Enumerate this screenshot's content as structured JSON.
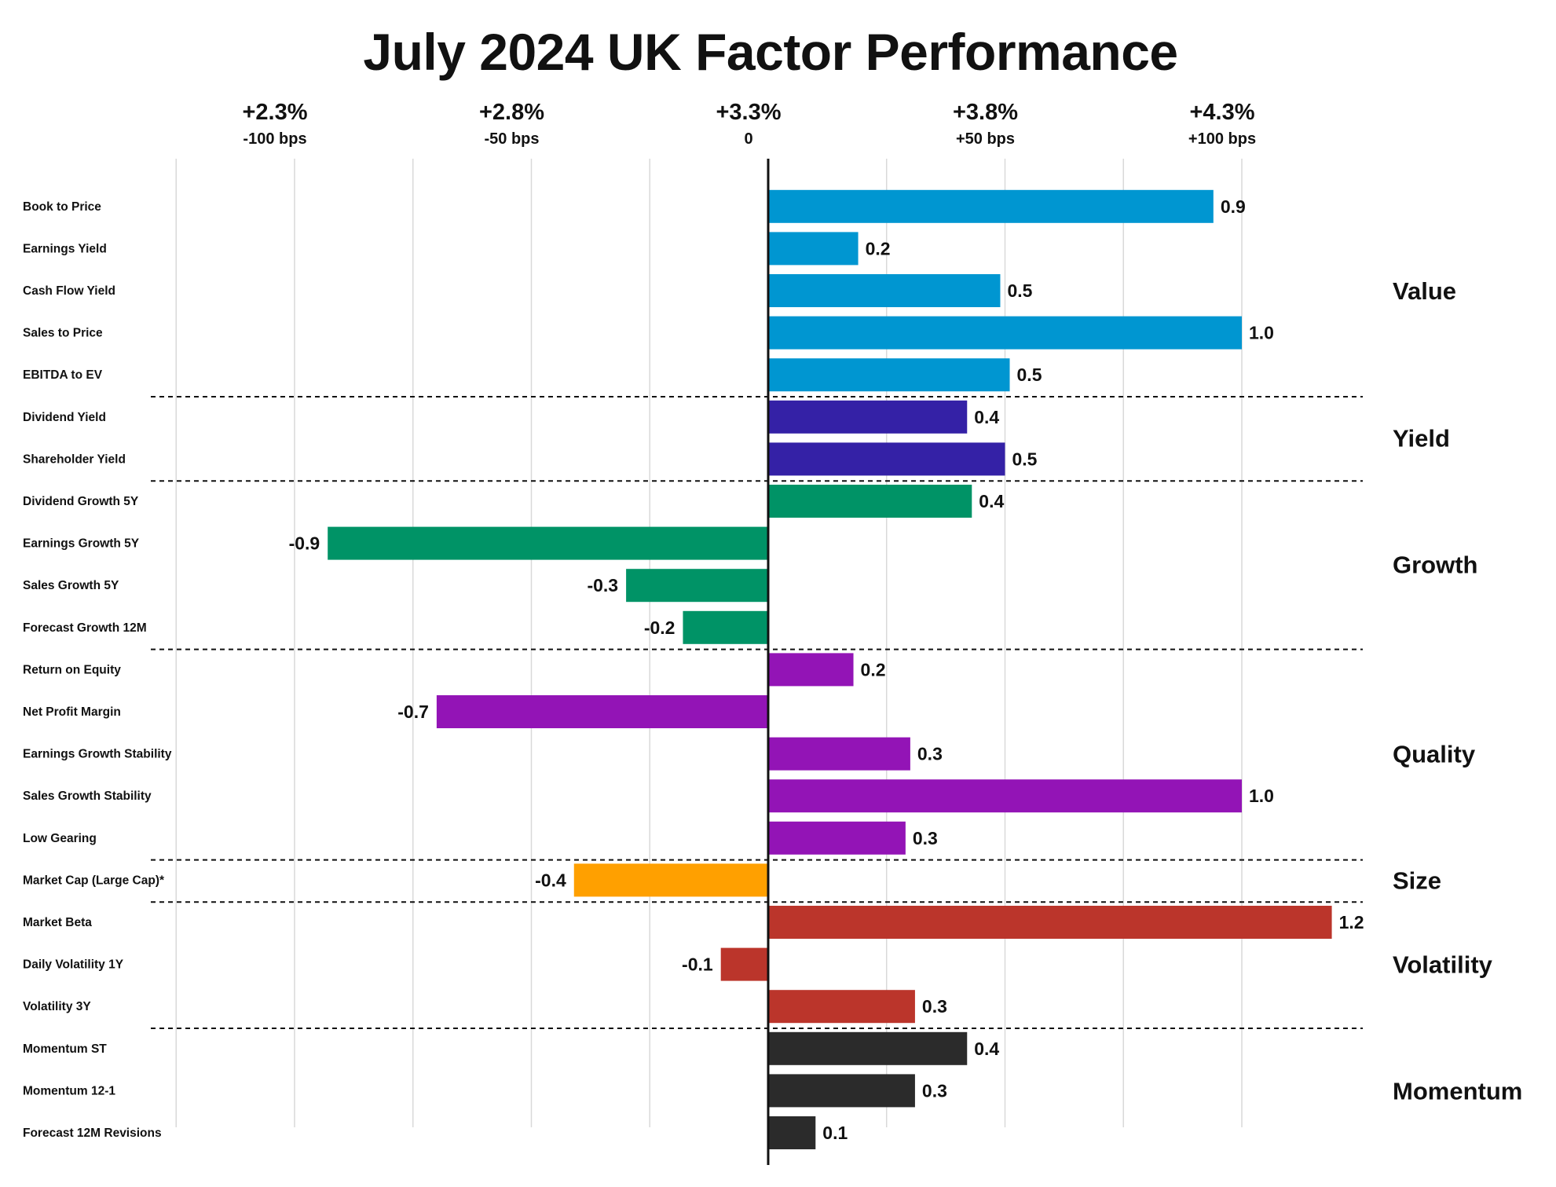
{
  "chart_data": {
    "type": "bar",
    "orientation": "horizontal",
    "title": "July 2024 UK Factor Performance",
    "x_ticks": [
      {
        "value": -1.0,
        "label": "+2.3%",
        "sublabel": "-100 bps"
      },
      {
        "value": -0.5,
        "label": "+2.8%",
        "sublabel": "-50 bps"
      },
      {
        "value": 0.0,
        "label": "+3.3%",
        "sublabel": "0"
      },
      {
        "value": 0.5,
        "label": "+3.8%",
        "sublabel": "+50 bps"
      },
      {
        "value": 1.0,
        "label": "+4.3%",
        "sublabel": "+100 bps"
      }
    ],
    "grid": true,
    "categories": [
      {
        "name": "Book to Price",
        "value": 0.94,
        "label": "0.9",
        "group": "Value"
      },
      {
        "name": "Earnings Yield",
        "value": 0.19,
        "label": "0.2",
        "group": "Value"
      },
      {
        "name": "Cash Flow Yield",
        "value": 0.49,
        "label": "0.5",
        "group": "Value"
      },
      {
        "name": "Sales to Price",
        "value": 1.0,
        "label": "1.0",
        "group": "Value"
      },
      {
        "name": "EBITDA to EV",
        "value": 0.51,
        "label": "0.5",
        "group": "Value"
      },
      {
        "name": "Dividend Yield",
        "value": 0.42,
        "label": "0.4",
        "group": "Yield"
      },
      {
        "name": "Shareholder Yield",
        "value": 0.5,
        "label": "0.5",
        "group": "Yield"
      },
      {
        "name": "Dividend Growth 5Y",
        "value": 0.43,
        "label": "0.4",
        "group": "Growth"
      },
      {
        "name": "Earnings Growth 5Y",
        "value": -0.93,
        "label": "-0.9",
        "group": "Growth"
      },
      {
        "name": "Sales Growth 5Y",
        "value": -0.3,
        "label": "-0.3",
        "group": "Growth"
      },
      {
        "name": "Forecast Growth 12M",
        "value": -0.18,
        "label": "-0.2",
        "group": "Growth"
      },
      {
        "name": "Return on Equity",
        "value": 0.18,
        "label": "0.2",
        "group": "Quality"
      },
      {
        "name": "Net Profit Margin",
        "value": -0.7,
        "label": "-0.7",
        "group": "Quality"
      },
      {
        "name": "Earnings Growth Stability",
        "value": 0.3,
        "label": "0.3",
        "group": "Quality"
      },
      {
        "name": "Sales Growth Stability",
        "value": 1.0,
        "label": "1.0",
        "group": "Quality"
      },
      {
        "name": "Low Gearing",
        "value": 0.29,
        "label": "0.3",
        "group": "Quality"
      },
      {
        "name": "Market Cap (Large Cap)*",
        "value": -0.41,
        "label": "-0.4",
        "group": "Size"
      },
      {
        "name": "Market Beta",
        "value": 1.19,
        "label": "1.2",
        "group": "Volatility"
      },
      {
        "name": "Daily Volatility 1Y",
        "value": -0.1,
        "label": "-0.1",
        "group": "Volatility"
      },
      {
        "name": "Volatility 3Y",
        "value": 0.31,
        "label": "0.3",
        "group": "Volatility"
      },
      {
        "name": "Momentum ST",
        "value": 0.42,
        "label": "0.4",
        "group": "Momentum"
      },
      {
        "name": "Momentum 12-1",
        "value": 0.31,
        "label": "0.3",
        "group": "Momentum"
      },
      {
        "name": "Forecast 12M Revisions",
        "value": 0.1,
        "label": "0.1",
        "group": "Momentum"
      }
    ],
    "groups": [
      {
        "name": "Value",
        "color": "#0096D1"
      },
      {
        "name": "Yield",
        "color": "#3421A6"
      },
      {
        "name": "Growth",
        "color": "#009366"
      },
      {
        "name": "Quality",
        "color": "#9314B6"
      },
      {
        "name": "Size",
        "color": "#FFA000"
      },
      {
        "name": "Volatility",
        "color": "#BB352B"
      },
      {
        "name": "Momentum",
        "color": "#2B2B2B"
      }
    ]
  }
}
